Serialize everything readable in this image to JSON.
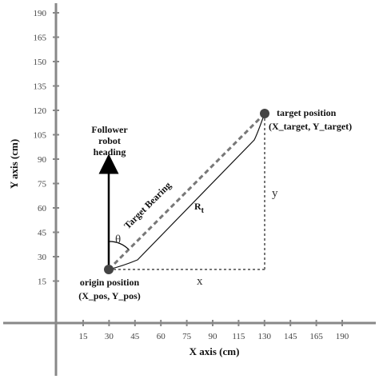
{
  "axes": {
    "x_title": "X axis (cm)",
    "y_title": "Y axis (cm)",
    "x_ticks": [
      "15",
      "30",
      "45",
      "60",
      "75",
      "90",
      "115",
      "130",
      "145",
      "165",
      "190"
    ],
    "y_ticks": [
      "190",
      "165",
      "150",
      "135",
      "120",
      "105",
      "90",
      "75",
      "60",
      "45",
      "30",
      "15"
    ],
    "color": "#888888"
  },
  "origin": {
    "label_line1": "origin position",
    "label_line2": "(X_pos, Y_pos)"
  },
  "target": {
    "label_line1": "target position",
    "label_line2": "(X_target, Y_target)"
  },
  "heading": {
    "line1": "Follower",
    "line2": "robot",
    "line3": "heading"
  },
  "bearing_label": "Target Bearing",
  "theta_symbol": "θ",
  "range": {
    "main": "R",
    "sub": "t"
  },
  "x_component": "x",
  "y_component": "y"
}
